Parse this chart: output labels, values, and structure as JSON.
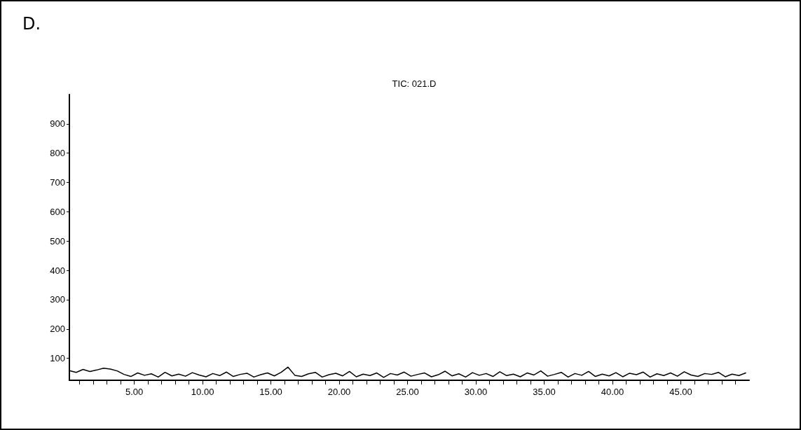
{
  "chart_data": {
    "type": "line",
    "title": "TIC: 021.D",
    "annotations": [
      "D."
    ],
    "x": [
      0.25,
      0.75,
      1.25,
      1.75,
      2.25,
      2.75,
      3.25,
      3.75,
      4.25,
      4.75,
      5.25,
      5.75,
      6.25,
      6.75,
      7.25,
      7.75,
      8.25,
      8.75,
      9.25,
      9.75,
      10.25,
      10.75,
      11.25,
      11.75,
      12.25,
      12.75,
      13.25,
      13.75,
      14.25,
      14.75,
      15.25,
      15.75,
      16.25,
      16.75,
      17.25,
      17.75,
      18.25,
      18.75,
      19.25,
      19.75,
      20.25,
      20.75,
      21.25,
      21.75,
      22.25,
      22.75,
      23.25,
      23.75,
      24.25,
      24.75,
      25.25,
      25.75,
      26.25,
      26.75,
      27.25,
      27.75,
      28.25,
      28.75,
      29.25,
      29.75,
      30.25,
      30.75,
      31.25,
      31.75,
      32.25,
      32.75,
      33.25,
      33.75,
      34.25,
      34.75,
      35.25,
      35.75,
      36.25,
      36.75,
      37.25,
      37.75,
      38.25,
      38.75,
      39.25,
      39.75,
      40.25,
      40.75,
      41.25,
      41.75,
      42.25,
      42.75,
      43.25,
      43.75,
      44.25,
      44.75,
      45.25,
      45.75,
      46.25,
      46.75,
      47.25,
      47.75,
      48.25,
      48.75,
      49.25,
      49.75
    ],
    "series": [
      {
        "color": "#000000",
        "values": [
          58,
          52,
          62,
          55,
          60,
          66,
          63,
          57,
          45,
          38,
          50,
          42,
          47,
          36,
          52,
          40,
          46,
          39,
          51,
          43,
          37,
          48,
          41,
          53,
          38,
          45,
          49,
          36,
          44,
          50,
          40,
          52,
          70,
          42,
          38,
          47,
          52,
          36,
          44,
          49,
          40,
          55,
          37,
          46,
          41,
          50,
          35,
          48,
          43,
          53,
          39,
          45,
          50,
          37,
          44,
          56,
          40,
          47,
          36,
          51,
          42,
          48,
          38,
          54,
          41,
          46,
          37,
          50,
          43,
          57,
          39,
          45,
          52,
          36,
          48,
          42,
          55,
          38,
          46,
          40,
          51,
          37,
          49,
          44,
          53,
          36,
          47,
          41,
          50,
          39,
          54,
          43,
          38,
          48,
          45,
          52,
          37,
          46,
          41,
          50
        ]
      }
    ],
    "xlim": [
      0.25,
      50
    ],
    "xticks": [
      {
        "value": 1,
        "label": null
      },
      {
        "value": 2,
        "label": null
      },
      {
        "value": 3,
        "label": null
      },
      {
        "value": 4,
        "label": null
      },
      {
        "value": 5,
        "label": "5.00"
      },
      {
        "value": 6,
        "label": null
      },
      {
        "value": 7,
        "label": null
      },
      {
        "value": 8,
        "label": null
      },
      {
        "value": 9,
        "label": null
      },
      {
        "value": 10,
        "label": "10.00"
      },
      {
        "value": 11,
        "label": null
      },
      {
        "value": 12,
        "label": null
      },
      {
        "value": 13,
        "label": null
      },
      {
        "value": 14,
        "label": null
      },
      {
        "value": 15,
        "label": "15.00"
      },
      {
        "value": 16,
        "label": null
      },
      {
        "value": 17,
        "label": null
      },
      {
        "value": 18,
        "label": null
      },
      {
        "value": 19,
        "label": null
      },
      {
        "value": 20,
        "label": "20.00"
      },
      {
        "value": 21,
        "label": null
      },
      {
        "value": 22,
        "label": null
      },
      {
        "value": 23,
        "label": null
      },
      {
        "value": 24,
        "label": null
      },
      {
        "value": 25,
        "label": "25.00"
      },
      {
        "value": 26,
        "label": null
      },
      {
        "value": 27,
        "label": null
      },
      {
        "value": 28,
        "label": null
      },
      {
        "value": 29,
        "label": null
      },
      {
        "value": 30,
        "label": "30.00"
      },
      {
        "value": 31,
        "label": null
      },
      {
        "value": 32,
        "label": null
      },
      {
        "value": 33,
        "label": null
      },
      {
        "value": 34,
        "label": null
      },
      {
        "value": 35,
        "label": "35.00"
      },
      {
        "value": 36,
        "label": null
      },
      {
        "value": 37,
        "label": null
      },
      {
        "value": 38,
        "label": null
      },
      {
        "value": 39,
        "label": null
      },
      {
        "value": 40,
        "label": "40.00"
      },
      {
        "value": 41,
        "label": null
      },
      {
        "value": 42,
        "label": null
      },
      {
        "value": 43,
        "label": null
      },
      {
        "value": 44,
        "label": null
      },
      {
        "value": 45,
        "label": "45.00"
      },
      {
        "value": 46,
        "label": null
      },
      {
        "value": 47,
        "label": null
      },
      {
        "value": 48,
        "label": null
      },
      {
        "value": 49,
        "label": null
      }
    ],
    "ylim": [
      25,
      1000
    ],
    "yticks": [
      100,
      200,
      300,
      400,
      500,
      600,
      700,
      800,
      900
    ],
    "grid": false,
    "marker": "none",
    "line_style": "solid"
  }
}
